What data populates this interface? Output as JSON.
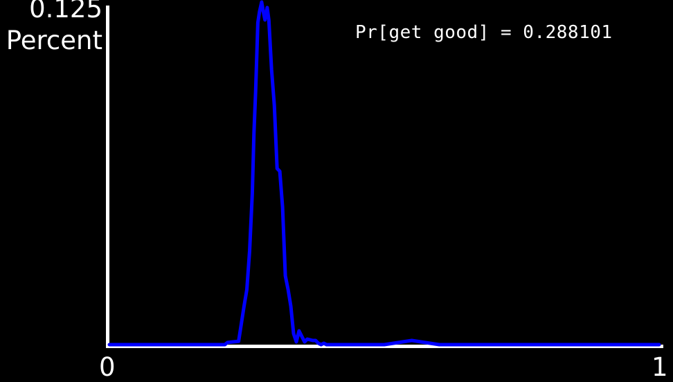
{
  "chart_data": {
    "type": "line",
    "ylabel": "Percent",
    "ylim": [
      0,
      0.125
    ],
    "ylim_label": "0.125",
    "xlim": [
      0,
      1
    ],
    "xtick_labels": [
      "0",
      "1"
    ],
    "annotation": "Pr[get good] = 0.288101",
    "grid": false,
    "colors": {
      "background": "#000000",
      "axes": "#ffffff",
      "line": "#0000ff",
      "text": "#ffffff"
    },
    "series": [
      {
        "x": [
          0.0,
          0.21,
          0.215,
          0.225,
          0.235,
          0.245,
          0.25,
          0.255,
          0.26,
          0.263,
          0.266,
          0.27,
          0.273,
          0.277,
          0.28,
          0.283,
          0.287,
          0.29,
          0.295,
          0.3,
          0.305,
          0.31,
          0.315,
          0.32,
          0.325,
          0.33,
          0.335,
          0.34,
          0.345,
          0.35,
          0.355,
          0.36,
          0.37,
          0.375,
          0.38,
          0.385,
          0.39,
          0.395,
          0.4,
          0.41,
          0.42,
          0.5,
          0.55,
          0.6,
          1.0
        ],
        "y": [
          0.0,
          0.0,
          0.0008,
          0.001,
          0.0012,
          0.014,
          0.02,
          0.034,
          0.055,
          0.077,
          0.092,
          0.117,
          0.121,
          0.1245,
          0.121,
          0.118,
          0.1225,
          0.118,
          0.1,
          0.087,
          0.064,
          0.063,
          0.05,
          0.025,
          0.02,
          0.014,
          0.004,
          0.001,
          0.005,
          0.003,
          0.001,
          0.002,
          0.0015,
          0.0015,
          0.0005,
          0.0,
          0.0005,
          0.0,
          0.0,
          0.0,
          0.0,
          0.0,
          0.0015,
          0.0,
          0.0
        ]
      }
    ]
  }
}
